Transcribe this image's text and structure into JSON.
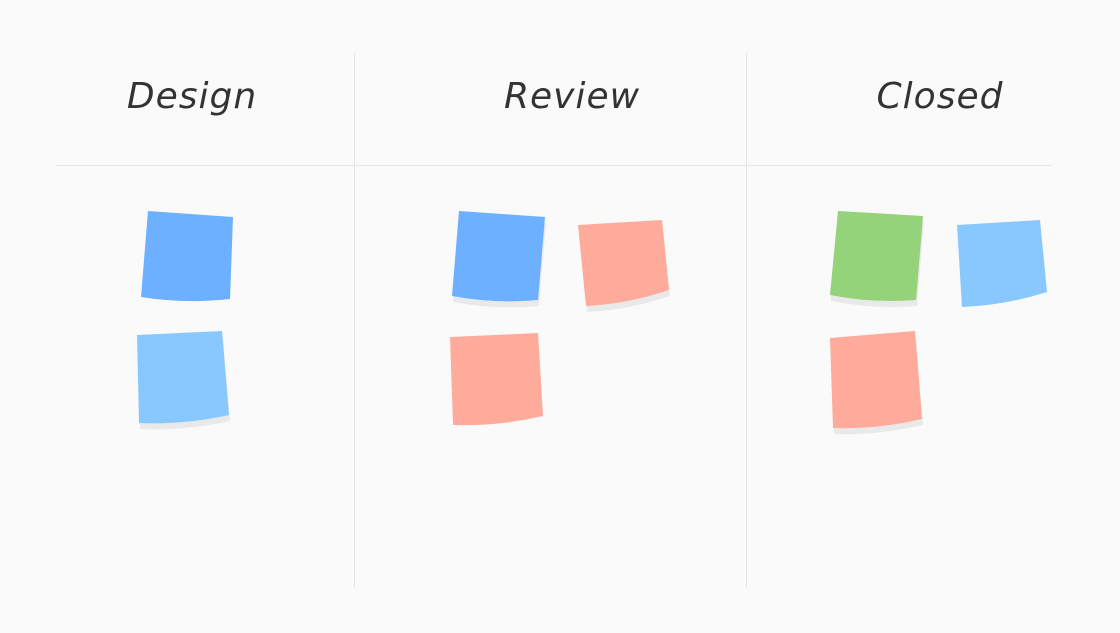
{
  "columns": [
    {
      "title": "Design"
    },
    {
      "title": "Review"
    },
    {
      "title": "Closed"
    }
  ],
  "colors": {
    "blue": "#6cb0ff",
    "light_blue": "#88c8ff",
    "salmon": "#ffab9c",
    "green": "#95d37a",
    "shadow": "#e9e9e9"
  },
  "notes": [
    {
      "column": "Design",
      "color": "blue"
    },
    {
      "column": "Design",
      "color": "light_blue"
    },
    {
      "column": "Review",
      "color": "blue"
    },
    {
      "column": "Review",
      "color": "salmon"
    },
    {
      "column": "Review",
      "color": "salmon"
    },
    {
      "column": "Closed",
      "color": "green"
    },
    {
      "column": "Closed",
      "color": "light_blue"
    },
    {
      "column": "Closed",
      "color": "salmon"
    }
  ]
}
